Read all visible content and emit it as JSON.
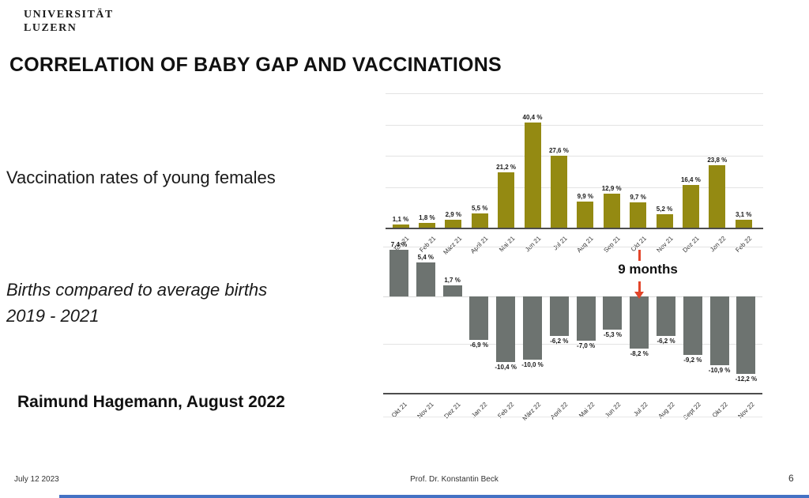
{
  "slide": {
    "logo": {
      "line1": "UNIVERSITÄT",
      "line2": "LUZERN"
    },
    "title": "CORRELATION OF BABY GAP AND VACCINATIONS",
    "left_labels": {
      "top_chart": "Vaccination rates of young females",
      "bottom_chart_line1": "Births compared to average births",
      "bottom_chart_line2": "2019 - 2021",
      "attribution": "Raimund Hagemann, August 2022"
    },
    "annotation": {
      "text": "9 months",
      "color": "#e2452a"
    },
    "footer": {
      "date": "July 12 2023",
      "center": "Prof. Dr. Konstantin Beck",
      "page": "6"
    },
    "colors": {
      "vaccination_bars": "#948A12",
      "births_bars": "#6D7370",
      "bottom_accent": "#4472c4"
    }
  },
  "chart_data": [
    {
      "type": "bar",
      "title": "Vaccination rates of young females",
      "categories": [
        "Jan 21",
        "Feb 21",
        "März 21",
        "April 21",
        "Mai 21",
        "Jun 21",
        "Jul 21",
        "Aug 21",
        "Sep 21",
        "Okt 21",
        "Nov 21",
        "Dez 21",
        "Jan 22",
        "Feb 22"
      ],
      "values": [
        1.1,
        1.8,
        2.9,
        5.5,
        21.2,
        40.4,
        27.6,
        9.9,
        12.9,
        9.7,
        5.2,
        16.4,
        23.8,
        3.1
      ],
      "value_labels": [
        "1,1 %",
        "1,8 %",
        "2,9 %",
        "5,5 %",
        "21,2 %",
        "40,4 %",
        "27,6 %",
        "9,9 %",
        "12,9 %",
        "9,7 %",
        "5,2 %",
        "16,4 %",
        "23,8 %",
        "3,1 %"
      ],
      "unit": "%",
      "ylim": [
        0,
        50
      ],
      "grid": true,
      "legend": "none",
      "bar_color": "#948A12"
    },
    {
      "type": "bar",
      "title": "Births compared to average births 2019 - 2021",
      "categories": [
        "Okt 21",
        "Nov 21",
        "Dez 21",
        "Jan 22",
        "Feb 22",
        "März 22",
        "April 22",
        "Mai 22",
        "Jun 22",
        "Jul 22",
        "Aug 22",
        "Sept 22",
        "Okt 22",
        "Nov 22"
      ],
      "values": [
        7.4,
        5.4,
        1.7,
        -6.9,
        -10.4,
        -10.0,
        -6.2,
        -7.0,
        -5.3,
        -8.2,
        -6.2,
        -9.2,
        -10.9,
        -12.2
      ],
      "value_labels": [
        "7,4 %",
        "5,4 %",
        "1,7 %",
        "-6,9 %",
        "-10,4 %",
        "-10,0 %",
        "-6,2 %",
        "-7,0 %",
        "-5,3 %",
        "-8,2 %",
        "-6,2 %",
        "-9,2 %",
        "-10,9 %",
        "-12,2 %"
      ],
      "unit": "%",
      "ylim": [
        -15,
        8
      ],
      "grid": true,
      "legend": "none",
      "bar_color": "#6D7370",
      "annotation": {
        "text": "9 months",
        "from_top_chart_category": "Okt 21",
        "points_to_category": "Jul 22"
      }
    }
  ]
}
